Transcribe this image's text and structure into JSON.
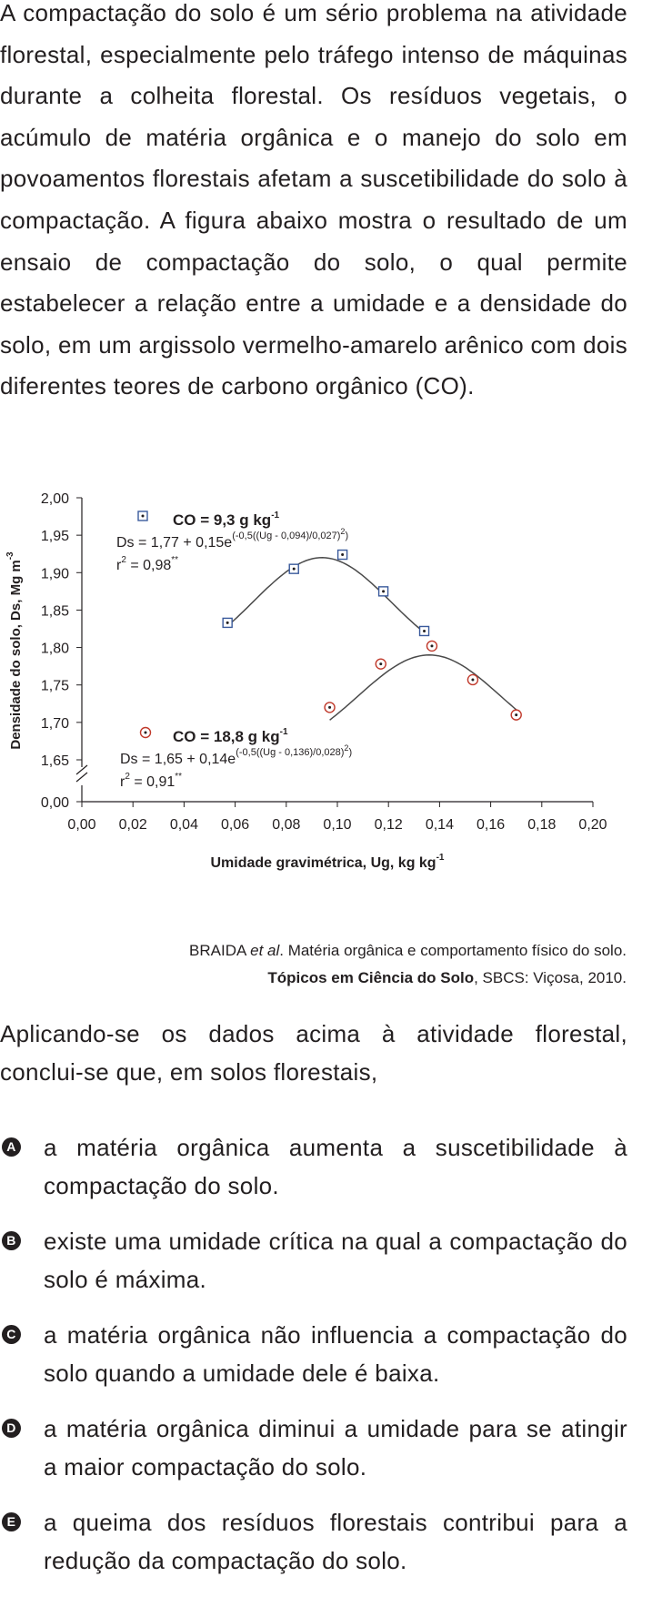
{
  "intro": "A compactação do solo é um sério problema na atividade florestal, especialmente pelo tráfego intenso de máquinas durante a colheita florestal. Os resíduos vegetais, o acúmulo de matéria orgânica e o manejo do solo em povoamentos florestais afetam a suscetibilidade do solo à compactação. A figura abaixo mostra o resultado de um ensaio de compactação do solo, o qual permite estabelecer a relação entre a umidade e a densidade do solo, em um argissolo vermelho-amarelo arênico com dois diferentes teores de carbono orgânico (CO).",
  "chart_data": {
    "type": "scatter",
    "xlabel": "Umidade gravimétrica, Ug, kg kg",
    "xlabel_sup": "-1",
    "ylabel": "Densidade do solo, Ds, Mg m",
    "ylabel_sup": "-3",
    "x_ticks": [
      "0,00",
      "0,02",
      "0,04",
      "0,06",
      "0,08",
      "0,10",
      "0,12",
      "0,14",
      "0,16",
      "0,18",
      "0,20"
    ],
    "y_ticks": [
      "0,00",
      "1,65",
      "1,70",
      "1,75",
      "1,80",
      "1,85",
      "1,90",
      "1,95",
      "2,00"
    ],
    "xlim": [
      0,
      0.2
    ],
    "ylim": [
      1.6,
      2.0
    ],
    "y_axis_break": true,
    "series": [
      {
        "name": "CO = 9,3 g kg",
        "name_sup": "-1",
        "equation": "Ds = 1,77 + 0,15e",
        "equation_sup": "(-0,5((Ug - 0,094)/0,027)",
        "equation_sup_end": "2",
        "equation_close": ")",
        "r2_label": "r",
        "r2_value": " = 0,98",
        "r2_sig": "**",
        "marker": "square",
        "color": "#3a5a9c",
        "points": [
          {
            "x": 0.057,
            "y": 1.833
          },
          {
            "x": 0.083,
            "y": 1.905
          },
          {
            "x": 0.102,
            "y": 1.924
          },
          {
            "x": 0.118,
            "y": 1.875
          },
          {
            "x": 0.134,
            "y": 1.822
          }
        ],
        "fit": {
          "a": 1.77,
          "b": 0.15,
          "mu": 0.094,
          "sigma": 0.027,
          "x_range": [
            0.057,
            0.134
          ]
        }
      },
      {
        "name": "CO = 18,8 g kg",
        "name_sup": "-1",
        "equation": "Ds = 1,65 + 0,14e",
        "equation_sup": "(-0,5((Ug - 0,136)/0,028)",
        "equation_sup_end": "2",
        "equation_close": ")",
        "r2_label": "r",
        "r2_value": " = 0,91",
        "r2_sig": "**",
        "marker": "circle",
        "color": "#c0392b",
        "points": [
          {
            "x": 0.097,
            "y": 1.72
          },
          {
            "x": 0.117,
            "y": 1.778
          },
          {
            "x": 0.137,
            "y": 1.802
          },
          {
            "x": 0.153,
            "y": 1.757
          },
          {
            "x": 0.17,
            "y": 1.71
          }
        ],
        "fit": {
          "a": 1.65,
          "b": 0.14,
          "mu": 0.136,
          "sigma": 0.028,
          "x_range": [
            0.097,
            0.17
          ]
        }
      }
    ]
  },
  "source": {
    "line1_authors": "BRAIDA ",
    "line1_etal": "et al",
    "line1_rest": ". Matéria orgânica e comportamento físico do solo.",
    "line2_title": "Tópicos em Ciência do Solo",
    "line2_rest": ", SBCS: Viçosa, 2010."
  },
  "question": "Aplicando-se os dados acima à atividade florestal, conclui-se que, em solos florestais,",
  "options": [
    {
      "letter": "A",
      "text": "a matéria orgânica aumenta a suscetibilidade à compactação do solo."
    },
    {
      "letter": "B",
      "text": "existe uma umidade crítica na qual a compactação do solo é máxima."
    },
    {
      "letter": "C",
      "text": "a matéria orgânica não influencia a compactação do solo quando a umidade dele é baixa."
    },
    {
      "letter": "D",
      "text": "a matéria orgânica diminui a umidade para se atingir a maior compactação do solo."
    },
    {
      "letter": "E",
      "text": "a queima dos resíduos florestais contribui para a redução da compactação do solo."
    }
  ]
}
